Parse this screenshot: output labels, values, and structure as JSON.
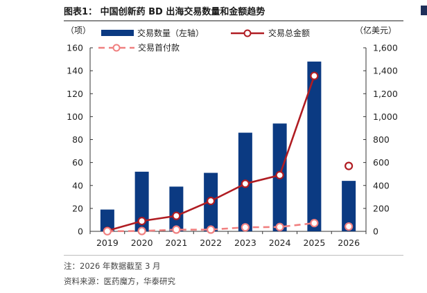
{
  "figure": {
    "title": "图表1：  中国创新药 BD 出海交易数量和金额趋势",
    "note": "注：2026 年数据截至 3 月",
    "source": "资料来源：医药魔方，华泰研究"
  },
  "chart_data": {
    "type": "bar",
    "categories": [
      "2019",
      "2020",
      "2021",
      "2022",
      "2023",
      "2024",
      "2025",
      "2026"
    ],
    "left_axis": {
      "unit_label": "（项）",
      "range": [
        0,
        160
      ],
      "ticks": [
        "0",
        "20",
        "40",
        "60",
        "80",
        "100",
        "120",
        "140",
        "160"
      ]
    },
    "right_axis": {
      "unit_label": "（亿美元）",
      "range": [
        0,
        1600
      ],
      "ticks": [
        "0",
        "200",
        "400",
        "600",
        "800",
        "1,000",
        "1,200",
        "1,400",
        "1,600"
      ]
    },
    "series": [
      {
        "name": "交易数量（左轴）",
        "type": "bar",
        "axis": "left",
        "color": "#0b3a82",
        "values": [
          19,
          52,
          39,
          51,
          86,
          94,
          148,
          44
        ]
      },
      {
        "name": "交易总金额",
        "type": "line",
        "axis": "right",
        "color": "#b01c22",
        "values": [
          5,
          90,
          135,
          265,
          415,
          490,
          1355,
          570
        ],
        "last_point_marker_only": true
      },
      {
        "name": "交易首付款",
        "type": "line",
        "style": "dashed",
        "axis": "right",
        "color": "#f08080",
        "values": [
          1,
          3,
          15,
          15,
          35,
          38,
          72,
          42
        ],
        "last_point_marker_only": true
      }
    ],
    "legend_position": "top"
  }
}
